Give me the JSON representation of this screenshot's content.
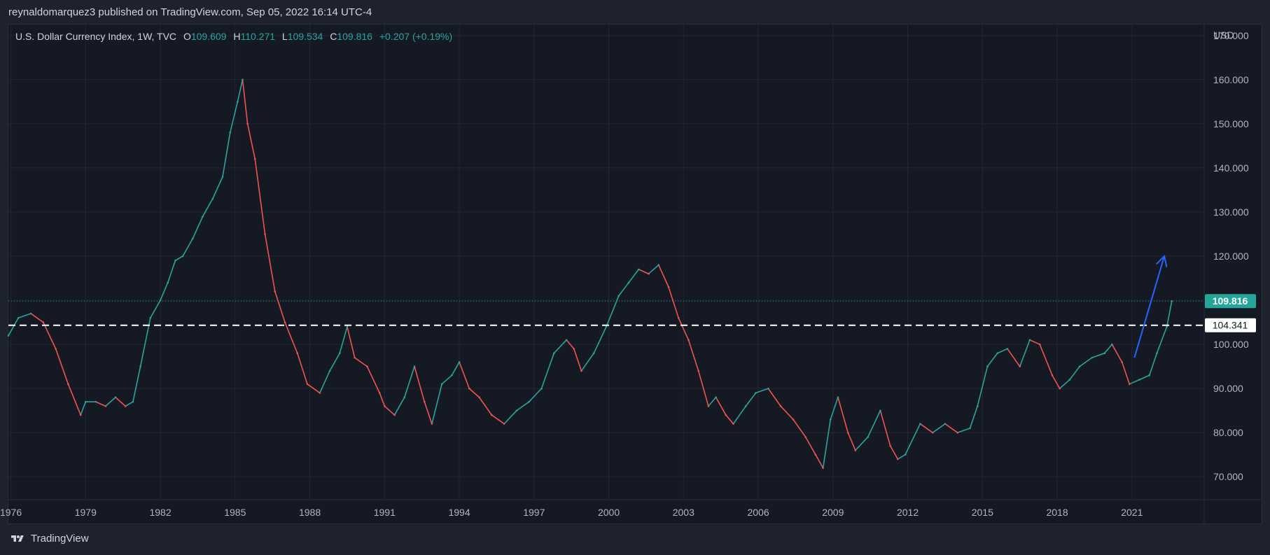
{
  "header": {
    "publisher_line": "reynaldomarquez3 published on TradingView.com, Sep 05, 2022 16:14 UTC-4"
  },
  "legend": {
    "symbol": "U.S. Dollar Currency Index, 1W, TVC",
    "open_label": "O",
    "open_value": "109.609",
    "high_label": "H",
    "high_value": "110.271",
    "low_label": "L",
    "low_value": "109.534",
    "close_label": "C",
    "close_value": "109.816",
    "change": "+0.207 (+0.19%)"
  },
  "footer": {
    "brand": "TradingView",
    "logo_icon": "tradingview-logo-icon"
  },
  "colors": {
    "background": "#151924",
    "grid": "#232734",
    "up": "#26a69a",
    "down": "#ef5350",
    "last_price": "#26a69a",
    "hline": "#ffffff",
    "arrow": "#2962ff"
  },
  "chart_data": {
    "type": "line",
    "title": "U.S. Dollar Currency Index",
    "currency": "USD",
    "x_ticks": [
      "1976",
      "1979",
      "1982",
      "1985",
      "1988",
      "1991",
      "1994",
      "1997",
      "2000",
      "2003",
      "2006",
      "2009",
      "2012",
      "2015",
      "2018",
      "2021"
    ],
    "y_ticks": [
      "70.000",
      "80.000",
      "90.000",
      "100.000",
      "110.000",
      "120.000",
      "130.000",
      "140.000",
      "150.000",
      "160.000",
      "170.000"
    ],
    "xlim": [
      1975.9,
      2023.9
    ],
    "ylim": [
      64.8,
      172.5
    ],
    "grid": true,
    "series": [
      {
        "x": [
          1975.9,
          1976.3,
          1976.8,
          1977.3,
          1977.8,
          1978.3,
          1978.8,
          1979.0,
          1979.4,
          1979.8,
          1980.2,
          1980.6,
          1980.9,
          1981.2,
          1981.6,
          1982.0,
          1982.3,
          1982.6,
          1982.9,
          1983.3,
          1983.7,
          1984.1,
          1984.5,
          1984.8,
          1985.1,
          1985.3,
          1985.5,
          1985.8,
          1986.2,
          1986.6,
          1987.0,
          1987.5,
          1987.9,
          1988.4,
          1988.8,
          1989.2,
          1989.5,
          1989.8,
          1990.3,
          1990.8,
          1991.0,
          1991.4,
          1991.8,
          1992.2,
          1992.6,
          1992.9,
          1993.3,
          1993.7,
          1994.0,
          1994.4,
          1994.8,
          1995.3,
          1995.8,
          1996.3,
          1996.8,
          1997.3,
          1997.8,
          1998.3,
          1998.6,
          1998.9,
          1999.4,
          1999.9,
          2000.4,
          2000.8,
          2001.2,
          2001.6,
          2002.0,
          2002.4,
          2002.8,
          2003.2,
          2003.6,
          2004.0,
          2004.3,
          2004.7,
          2005.0,
          2005.5,
          2005.9,
          2006.4,
          2006.9,
          2007.4,
          2007.9,
          2008.3,
          2008.6,
          2008.9,
          2009.2,
          2009.6,
          2009.9,
          2010.4,
          2010.9,
          2011.3,
          2011.6,
          2011.9,
          2012.5,
          2013.0,
          2013.5,
          2014.0,
          2014.5,
          2014.8,
          2015.2,
          2015.6,
          2016.0,
          2016.5,
          2016.9,
          2017.3,
          2017.8,
          2018.1,
          2018.5,
          2018.9,
          2019.4,
          2019.9,
          2020.2,
          2020.6,
          2020.9,
          2021.3,
          2021.7,
          2022.0,
          2022.4,
          2022.6
        ],
        "y": [
          102,
          106,
          107,
          105,
          99,
          91,
          84,
          87,
          87,
          86,
          88,
          86,
          87,
          95,
          106,
          110,
          114,
          119,
          120,
          124,
          129,
          133,
          138,
          148,
          155,
          160,
          150,
          142,
          125,
          112,
          105,
          98,
          91,
          89,
          94,
          98,
          104,
          97,
          95,
          89,
          86,
          84,
          88,
          95,
          87,
          82,
          91,
          93,
          96,
          90,
          88,
          84,
          82,
          85,
          87,
          90,
          98,
          101,
          99,
          94,
          98,
          104,
          111,
          114,
          117,
          116,
          118,
          113,
          106,
          101,
          94,
          86,
          88,
          84,
          82,
          86,
          89,
          90,
          86,
          83,
          79,
          75,
          72,
          83,
          88,
          80,
          76,
          79,
          85,
          77,
          74,
          75,
          82,
          80,
          82,
          80,
          81,
          86,
          95,
          98,
          99,
          95,
          101,
          100,
          93,
          90,
          92,
          95,
          97,
          98,
          100,
          96,
          91,
          92,
          93,
          98,
          104,
          109.8
        ]
      }
    ],
    "last_price_label": "109.816",
    "horizontal_line": {
      "value": 104.341,
      "label": "104.341",
      "style": "dashed"
    },
    "arrow_annotation": {
      "from": [
        2021.1,
        97.0
      ],
      "to": [
        2022.3,
        120.0
      ]
    }
  }
}
